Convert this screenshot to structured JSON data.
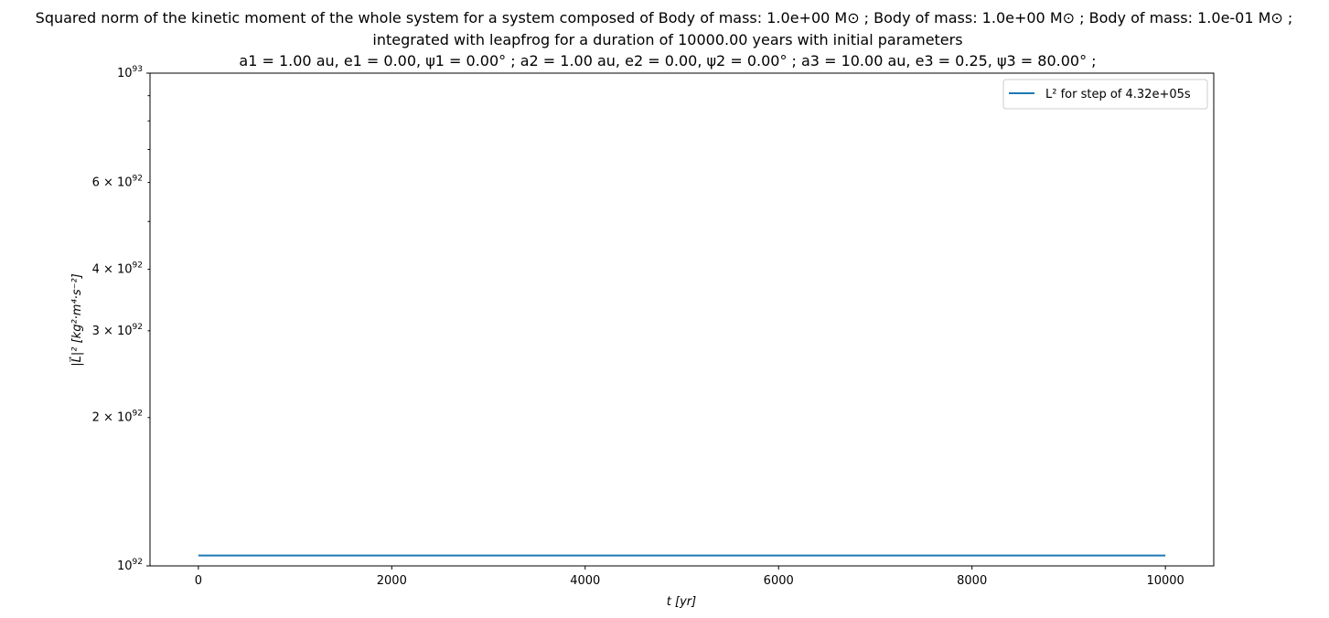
{
  "chart_data": {
    "type": "line",
    "title": [
      "Squared norm of the kinetic moment of the whole system for a system composed of Body of mass: 1.0e+00 M⊙ ; Body of mass: 1.0e+00 M⊙ ; Body of mass: 1.0e-01 M⊙ ;",
      "integrated with leapfrog for a duration of 10000.00 years with initial parameters",
      "a1 = 1.00 au, e1 = 0.00, ψ1 = 0.00° ; a2 = 1.00 au, e2 = 0.00, ψ2 = 0.00° ; a3 = 10.00 au, e3 = 0.25, ψ3 = 80.00° ;"
    ],
    "xlabel": "t [yr]",
    "ylabel": "|L⃗|² [kg²·m⁴·s⁻²]",
    "xlim": [
      -500,
      10500
    ],
    "ylim": [
      1e+92,
      1e+93
    ],
    "yscale": "log",
    "grid": false,
    "legend_position": "top-right",
    "x_ticks": [
      {
        "value": 0,
        "label": "0"
      },
      {
        "value": 2000,
        "label": "2000"
      },
      {
        "value": 4000,
        "label": "4000"
      },
      {
        "value": 6000,
        "label": "6000"
      },
      {
        "value": 8000,
        "label": "8000"
      },
      {
        "value": 10000,
        "label": "10000"
      }
    ],
    "y_ticks": [
      {
        "value": 1e+92,
        "mant": "",
        "base": "10",
        "exp": "92"
      },
      {
        "value": 2e+92,
        "mant": "2 × ",
        "base": "10",
        "exp": "92"
      },
      {
        "value": 3e+92,
        "mant": "3 × ",
        "base": "10",
        "exp": "92"
      },
      {
        "value": 4e+92,
        "mant": "4 × ",
        "base": "10",
        "exp": "92"
      },
      {
        "value": 6e+92,
        "mant": "6 × ",
        "base": "10",
        "exp": "92"
      },
      {
        "value": 1e+93,
        "mant": "",
        "base": "10",
        "exp": "93"
      }
    ],
    "y_minor_unlabeled": [
      5e+92,
      7e+92,
      8e+92,
      9e+92
    ],
    "series": [
      {
        "name": "L² for step of 4.32e+05s",
        "color": "#1f77b4",
        "x": [
          0,
          10000
        ],
        "y": [
          1.05e+92,
          1.05e+92
        ]
      }
    ]
  }
}
